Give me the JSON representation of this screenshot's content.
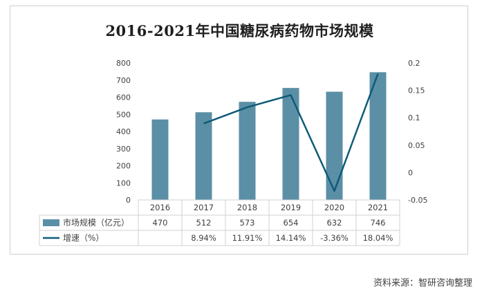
{
  "chart_data": {
    "type": "bar",
    "title": "2016-2021年中国糖尿病药物市场规模",
    "categories": [
      "2016",
      "2017",
      "2018",
      "2019",
      "2020",
      "2021"
    ],
    "series": [
      {
        "name": "市场规模（亿元）",
        "type": "bar",
        "axis": "left",
        "values": [
          470,
          512,
          573,
          654,
          632,
          746
        ],
        "value_labels": [
          "470",
          "512",
          "573",
          "654",
          "632",
          "746"
        ],
        "color": "#5b8fa6"
      },
      {
        "name": "增速（%）",
        "type": "line",
        "axis": "right",
        "values": [
          null,
          0.0894,
          0.1191,
          0.1414,
          -0.0336,
          0.1804
        ],
        "value_labels": [
          "",
          "8.94%",
          "11.91%",
          "14.14%",
          "-3.36%",
          "18.04%"
        ],
        "color": "#0e5b78"
      }
    ],
    "y_left": {
      "min": 0,
      "max": 800,
      "ticks": [
        "0",
        "100",
        "200",
        "300",
        "400",
        "500",
        "600",
        "700",
        "800"
      ]
    },
    "y_right": {
      "min": -0.05,
      "max": 0.2,
      "ticks": [
        "-0.05",
        "0",
        "0.05",
        "0.1",
        "0.15",
        "0.2"
      ]
    },
    "grid": false,
    "legend": "data-table"
  },
  "source_note": "资料来源：智研咨询整理"
}
